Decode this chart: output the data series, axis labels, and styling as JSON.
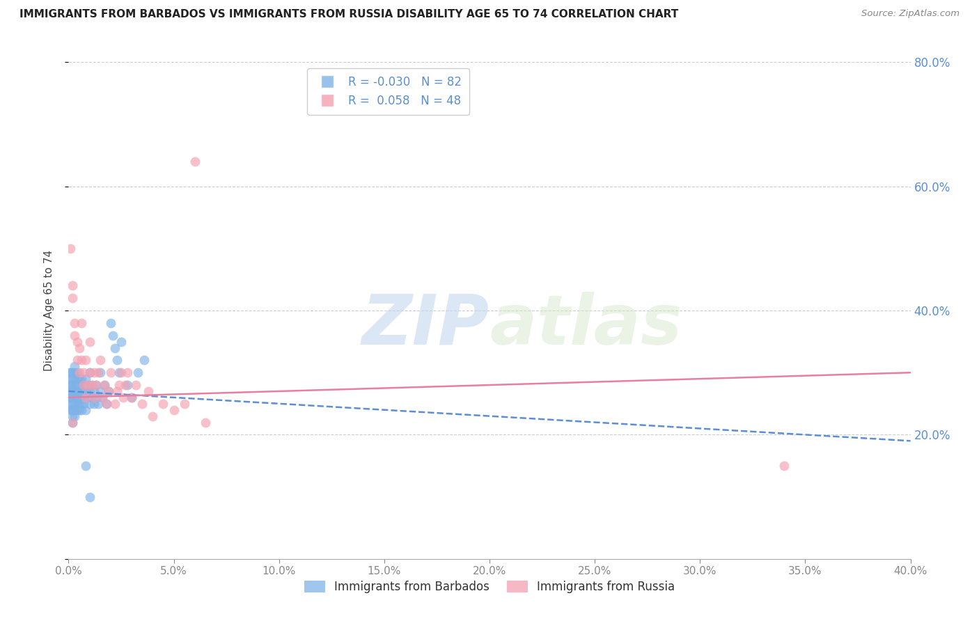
{
  "title": "IMMIGRANTS FROM BARBADOS VS IMMIGRANTS FROM RUSSIA DISABILITY AGE 65 TO 74 CORRELATION CHART",
  "source": "Source: ZipAtlas.com",
  "ylabel": "Disability Age 65 to 74",
  "r_barbados": -0.03,
  "n_barbados": 82,
  "r_russia": 0.058,
  "n_russia": 48,
  "xlim": [
    0.0,
    0.4
  ],
  "ylim": [
    0.0,
    0.8
  ],
  "x_ticks": [
    0.0,
    0.05,
    0.1,
    0.15,
    0.2,
    0.25,
    0.3,
    0.35,
    0.4
  ],
  "y_ticks": [
    0.0,
    0.2,
    0.4,
    0.6,
    0.8
  ],
  "y_ticks_right": [
    0.2,
    0.4,
    0.6,
    0.8
  ],
  "color_barbados": "#7fb3e8",
  "color_russia": "#f4a0b0",
  "color_barbados_line": "#5b8ed4",
  "color_russia_line": "#e87fa0",
  "color_right_axis": "#5b8ed4",
  "watermark_zip": "ZIP",
  "watermark_atlas": "atlas",
  "barbados_x": [
    0.001,
    0.001,
    0.001,
    0.001,
    0.001,
    0.001,
    0.001,
    0.001,
    0.001,
    0.001,
    0.002,
    0.002,
    0.002,
    0.002,
    0.002,
    0.002,
    0.002,
    0.002,
    0.002,
    0.002,
    0.003,
    0.003,
    0.003,
    0.003,
    0.003,
    0.003,
    0.003,
    0.003,
    0.003,
    0.004,
    0.004,
    0.004,
    0.004,
    0.004,
    0.004,
    0.004,
    0.005,
    0.005,
    0.005,
    0.005,
    0.005,
    0.005,
    0.006,
    0.006,
    0.006,
    0.006,
    0.007,
    0.007,
    0.007,
    0.008,
    0.008,
    0.008,
    0.009,
    0.009,
    0.01,
    0.01,
    0.01,
    0.011,
    0.011,
    0.012,
    0.012,
    0.013,
    0.013,
    0.014,
    0.015,
    0.015,
    0.016,
    0.017,
    0.018,
    0.019,
    0.02,
    0.021,
    0.022,
    0.023,
    0.024,
    0.025,
    0.028,
    0.03,
    0.033,
    0.036,
    0.01,
    0.008
  ],
  "barbados_y": [
    0.27,
    0.3,
    0.24,
    0.26,
    0.28,
    0.29,
    0.25,
    0.26,
    0.28,
    0.3,
    0.23,
    0.25,
    0.27,
    0.29,
    0.24,
    0.26,
    0.28,
    0.22,
    0.24,
    0.3,
    0.25,
    0.27,
    0.29,
    0.31,
    0.24,
    0.26,
    0.28,
    0.3,
    0.23,
    0.25,
    0.27,
    0.29,
    0.24,
    0.26,
    0.28,
    0.3,
    0.25,
    0.27,
    0.29,
    0.24,
    0.26,
    0.28,
    0.25,
    0.27,
    0.29,
    0.24,
    0.26,
    0.28,
    0.25,
    0.27,
    0.29,
    0.24,
    0.26,
    0.28,
    0.25,
    0.27,
    0.3,
    0.26,
    0.28,
    0.25,
    0.27,
    0.26,
    0.28,
    0.25,
    0.27,
    0.3,
    0.26,
    0.28,
    0.25,
    0.27,
    0.38,
    0.36,
    0.34,
    0.32,
    0.3,
    0.35,
    0.28,
    0.26,
    0.3,
    0.32,
    0.1,
    0.15
  ],
  "russia_x": [
    0.001,
    0.002,
    0.002,
    0.003,
    0.003,
    0.004,
    0.004,
    0.005,
    0.005,
    0.006,
    0.006,
    0.007,
    0.007,
    0.008,
    0.008,
    0.009,
    0.01,
    0.01,
    0.011,
    0.012,
    0.012,
    0.013,
    0.014,
    0.015,
    0.016,
    0.017,
    0.018,
    0.019,
    0.02,
    0.022,
    0.023,
    0.024,
    0.025,
    0.026,
    0.027,
    0.028,
    0.03,
    0.032,
    0.035,
    0.038,
    0.04,
    0.045,
    0.05,
    0.055,
    0.06,
    0.065,
    0.34,
    0.002
  ],
  "russia_y": [
    0.5,
    0.42,
    0.44,
    0.36,
    0.38,
    0.35,
    0.32,
    0.34,
    0.3,
    0.32,
    0.38,
    0.28,
    0.3,
    0.32,
    0.26,
    0.28,
    0.35,
    0.3,
    0.28,
    0.3,
    0.26,
    0.28,
    0.3,
    0.32,
    0.26,
    0.28,
    0.25,
    0.27,
    0.3,
    0.25,
    0.27,
    0.28,
    0.3,
    0.26,
    0.28,
    0.3,
    0.26,
    0.28,
    0.25,
    0.27,
    0.23,
    0.25,
    0.24,
    0.25,
    0.64,
    0.22,
    0.15,
    0.22
  ]
}
